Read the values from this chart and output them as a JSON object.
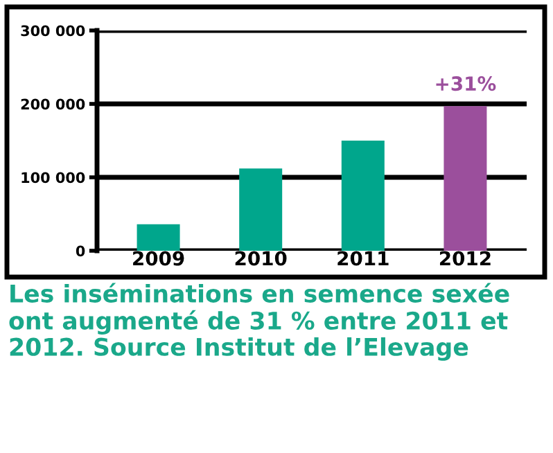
{
  "chart_data": {
    "type": "bar",
    "categories": [
      "2009",
      "2010",
      "2011",
      "2012"
    ],
    "values": [
      36000,
      112000,
      150000,
      197000
    ],
    "colors": [
      "#00a68c",
      "#00a68c",
      "#00a68c",
      "#9b4f9c"
    ],
    "ylim": [
      0,
      300000
    ],
    "yticks": [
      {
        "value": 0,
        "label": "0"
      },
      {
        "value": 100000,
        "label": "100 000"
      },
      {
        "value": 200000,
        "label": "200 000"
      },
      {
        "value": 300000,
        "label": "300 000"
      }
    ],
    "grid": "y",
    "annotations": [
      {
        "text": "+31%",
        "x": "2012",
        "y": 197000
      },
      "Les inséminations en semence sexée ont augmenté de 31 % entre 2011 et 2012. Source Institut de l’Elevage"
    ]
  }
}
